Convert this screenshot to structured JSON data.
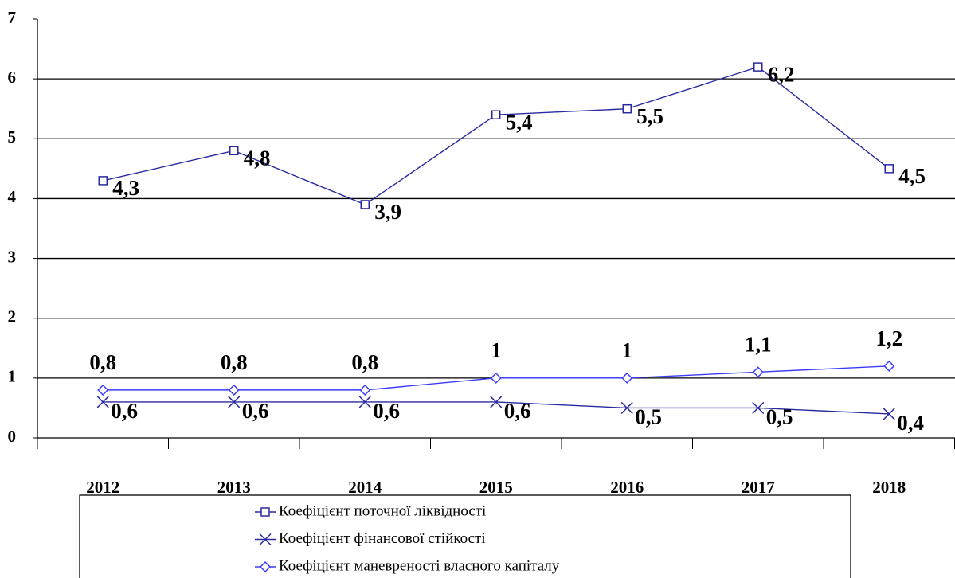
{
  "chart_data": {
    "type": "line",
    "categories": [
      "2012",
      "2013",
      "2014",
      "2015",
      "2016",
      "2017",
      "2018"
    ],
    "series": [
      {
        "name": "Коефіцієнт поточної ліквідності",
        "color": "#2a2aa0",
        "marker": "square",
        "values": [
          4.3,
          4.8,
          3.9,
          5.4,
          5.5,
          6.2,
          4.5
        ],
        "value_labels": [
          "4,3",
          "4,8",
          "3,9",
          "5,4",
          "5,5",
          "6,2",
          "4,5"
        ]
      },
      {
        "name": "Коефіцієнт фінансової стійкості",
        "color": "#2a2aa0",
        "marker": "x",
        "values": [
          0.6,
          0.6,
          0.6,
          0.6,
          0.5,
          0.5,
          0.4
        ],
        "value_labels": [
          "0,6",
          "0,6",
          "0,6",
          "0,6",
          "0,5",
          "0,5",
          "0,4"
        ]
      },
      {
        "name": "Коефіцієнт маневреності власного капіталу",
        "color": "#3b3bff",
        "marker": "diamond",
        "values": [
          0.8,
          0.8,
          0.8,
          1,
          1,
          1.1,
          1.2
        ],
        "value_labels": [
          "0,8",
          "0,8",
          "0,8",
          "1",
          "1",
          "1,1",
          "1,2"
        ]
      }
    ],
    "ylim": [
      0,
      7
    ],
    "yticks": [
      0,
      1,
      2,
      3,
      4,
      5,
      6,
      7
    ],
    "grid": true,
    "legend": "bottom"
  }
}
